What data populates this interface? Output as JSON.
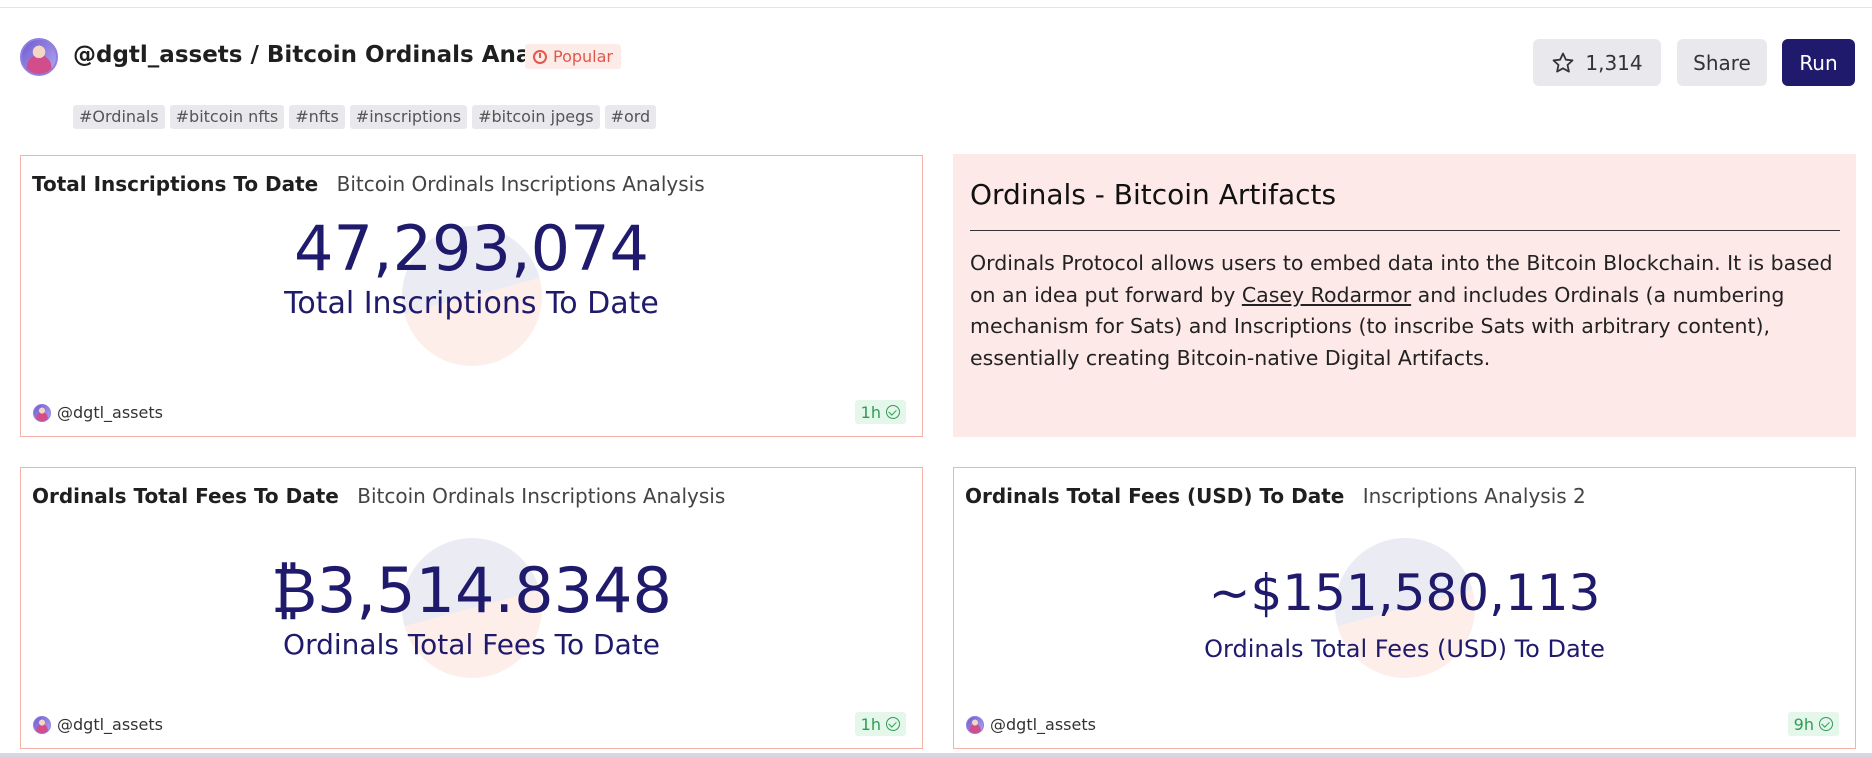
{
  "header": {
    "title": "@dgtl_assets / Bitcoin Ordinals Analysis",
    "badge": "Popular",
    "star_count": "1,314",
    "share_label": "Share",
    "run_label": "Run"
  },
  "tags": [
    "#Ordinals",
    "#bitcoin nfts",
    "#nfts",
    "#inscriptions",
    "#bitcoin jpegs",
    "#ord"
  ],
  "cards": [
    {
      "name": "Total Inscriptions To Date",
      "query": "Bitcoin Ordinals Inscriptions Analysis",
      "value": "47,293,074",
      "label": "Total Inscriptions To Date",
      "owner": "@dgtl_assets",
      "freshness": "1h"
    },
    {
      "name": "Ordinals Total Fees To Date",
      "query": "Bitcoin Ordinals Inscriptions Analysis",
      "value": "₿3,514.8348",
      "label": "Ordinals Total Fees To Date",
      "owner": "@dgtl_assets",
      "freshness": "1h"
    },
    {
      "name": "Ordinals Total Fees (USD) To Date",
      "query": "Inscriptions Analysis 2",
      "value": "~$151,580,113",
      "label": "Ordinals Total Fees (USD) To Date",
      "owner": "@dgtl_assets",
      "freshness": "9h"
    }
  ],
  "text_card": {
    "title": "Ordinals - Bitcoin Artifacts",
    "body_before": "Ordinals Protocol allows users to embed data into the Bitcoin Blockchain. It is based on an idea put forward by ",
    "link": "Casey Rodarmor",
    "body_after": " and includes Ordinals (a numbering mechanism for Sats) and Inscriptions (to inscribe Sats with arbitrary content), essentially creating Bitcoin-native Digital Artifacts."
  },
  "colors": {
    "accent": "#1f1a6b",
    "popular": "#e2574c",
    "card_border": "#f5b2a6",
    "text_card_bg": "#fde9e7",
    "fresh": "#2e9d55"
  },
  "icons": {
    "star": "star-icon",
    "clock": "clock-icon",
    "check": "check-circle-icon"
  }
}
